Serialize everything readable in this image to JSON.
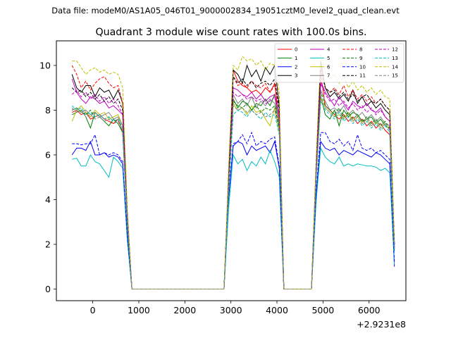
{
  "header": {
    "suptitle": "Data file: modeM0/AS1A05_046T01_9000002834_19051cztM0_level2_quad_clean.evt"
  },
  "chart_data": {
    "type": "line",
    "title": "Quadrant 3 module wise count rates with 100.0s bins.",
    "xlabel": "",
    "ylabel": "",
    "x_offset_label": "+2.9231e8",
    "xlim": [
      -790,
      6800
    ],
    "ylim": [
      -0.52,
      11.1
    ],
    "x_ticks": [
      0,
      1000,
      2000,
      3000,
      4000,
      5000,
      6000
    ],
    "x_tick_labels": [
      "0",
      "1000",
      "2000",
      "3000",
      "4000",
      "5000",
      "6000"
    ],
    "y_ticks": [
      0,
      2,
      4,
      6,
      8,
      10
    ],
    "y_tick_labels": [
      "0",
      "2",
      "4",
      "6",
      "8",
      "10"
    ],
    "grid": false,
    "legend_placement": "top-right",
    "legend_columns": 4,
    "x": [
      -450,
      -350,
      -250,
      -150,
      -50,
      50,
      150,
      250,
      350,
      450,
      550,
      650,
      750,
      850,
      950,
      1050,
      1150,
      1250,
      1350,
      1450,
      1550,
      1650,
      1750,
      1850,
      1950,
      2050,
      2150,
      2250,
      2350,
      2450,
      2550,
      2650,
      2750,
      2850,
      2950,
      3050,
      3150,
      3250,
      3350,
      3450,
      3550,
      3650,
      3750,
      3850,
      3950,
      4050,
      4150,
      4250,
      4350,
      4450,
      4550,
      4650,
      4750,
      4850,
      4950,
      5050,
      5150,
      5250,
      5350,
      5450,
      5550,
      5650,
      5750,
      5850,
      5950,
      6050,
      6150,
      6250,
      6350,
      6450,
      6550
    ],
    "series": [
      {
        "name": "0",
        "color": "#ff0000",
        "dash": "solid",
        "values": [
          7.9,
          8.0,
          7.8,
          7.9,
          7.6,
          7.7,
          7.8,
          7.6,
          7.5,
          7.4,
          7.6,
          7.0,
          3.0,
          0,
          0,
          0,
          0,
          0,
          0,
          0,
          0,
          0,
          0,
          0,
          0,
          0,
          0,
          0,
          0,
          0,
          0,
          0,
          0,
          0,
          4.5,
          9.8,
          9.3,
          9.1,
          9.0,
          8.8,
          8.9,
          8.7,
          9.0,
          8.8,
          9.2,
          7.5,
          0,
          0,
          0,
          0,
          0,
          0,
          0,
          5.0,
          9.6,
          8.2,
          8.0,
          7.8,
          7.6,
          7.8,
          7.5,
          7.7,
          7.4,
          7.6,
          7.3,
          7.5,
          7.2,
          7.4,
          7.1,
          6.9,
          1.8
        ]
      },
      {
        "name": "1",
        "color": "#008000",
        "dash": "solid",
        "values": [
          7.8,
          7.9,
          8.0,
          7.7,
          7.2,
          7.9,
          7.7,
          7.5,
          7.3,
          7.6,
          7.4,
          7.0,
          3.0,
          0,
          0,
          0,
          0,
          0,
          0,
          0,
          0,
          0,
          0,
          0,
          0,
          0,
          0,
          0,
          0,
          0,
          0,
          0,
          0,
          0,
          4.6,
          8.5,
          8.1,
          8.4,
          8.3,
          8.0,
          8.3,
          8.2,
          8.5,
          8.2,
          8.7,
          7.2,
          0,
          0,
          0,
          0,
          0,
          0,
          0,
          5.0,
          8.6,
          7.8,
          7.6,
          8.0,
          7.3,
          8.0,
          7.7,
          7.9,
          7.8,
          7.5,
          7.6,
          7.7,
          7.4,
          7.6,
          7.3,
          7.2,
          1.7
        ]
      },
      {
        "name": "2",
        "color": "#0000ff",
        "dash": "solid",
        "values": [
          6.0,
          6.3,
          6.3,
          6.2,
          6.6,
          6.0,
          6.0,
          6.1,
          5.9,
          6.0,
          5.9,
          5.6,
          2.4,
          0,
          0,
          0,
          0,
          0,
          0,
          0,
          0,
          0,
          0,
          0,
          0,
          0,
          0,
          0,
          0,
          0,
          0,
          0,
          0,
          0,
          4.0,
          6.4,
          6.6,
          6.5,
          6.0,
          6.4,
          6.2,
          6.3,
          6.4,
          6.1,
          6.6,
          5.4,
          0,
          0,
          0,
          0,
          0,
          0,
          0,
          4.2,
          6.6,
          6.3,
          6.2,
          6.3,
          6.0,
          6.2,
          6.1,
          6.0,
          6.2,
          6.1,
          6.0,
          5.9,
          6.1,
          6.0,
          5.8,
          5.6,
          1.0
        ]
      },
      {
        "name": "3",
        "color": "#000000",
        "dash": "solid",
        "values": [
          9.6,
          9.0,
          8.8,
          9.1,
          9.1,
          8.6,
          9.0,
          8.8,
          8.9,
          8.5,
          8.9,
          8.3,
          3.4,
          0,
          0,
          0,
          0,
          0,
          0,
          0,
          0,
          0,
          0,
          0,
          0,
          0,
          0,
          0,
          0,
          0,
          0,
          0,
          0,
          0,
          5.0,
          9.8,
          9.6,
          9.2,
          10.0,
          9.5,
          9.8,
          9.3,
          9.9,
          9.6,
          10.0,
          8.2,
          0,
          0,
          0,
          0,
          0,
          0,
          0,
          5.6,
          10.2,
          9.0,
          8.6,
          8.8,
          8.5,
          8.7,
          8.4,
          8.9,
          8.3,
          8.6,
          8.2,
          8.4,
          8.1,
          8.3,
          8.0,
          7.8,
          2.0
        ]
      },
      {
        "name": "4",
        "color": "#bf00bf",
        "dash": "solid",
        "values": [
          9.4,
          8.8,
          8.5,
          8.3,
          8.6,
          8.5,
          8.3,
          8.4,
          8.1,
          8.2,
          8.0,
          7.8,
          3.2,
          0,
          0,
          0,
          0,
          0,
          0,
          0,
          0,
          0,
          0,
          0,
          0,
          0,
          0,
          0,
          0,
          0,
          0,
          0,
          0,
          0,
          4.8,
          9.0,
          8.9,
          8.7,
          8.6,
          8.8,
          8.5,
          8.7,
          8.4,
          8.6,
          8.7,
          7.8,
          0,
          0,
          0,
          0,
          0,
          0,
          0,
          5.4,
          9.3,
          8.8,
          8.5,
          8.2,
          8.6,
          8.3,
          8.0,
          8.4,
          8.2,
          8.1,
          8.3,
          8.0,
          7.9,
          8.1,
          7.7,
          7.5,
          1.9
        ]
      },
      {
        "name": "5",
        "color": "#00bfbf",
        "dash": "solid",
        "values": [
          5.8,
          5.85,
          5.5,
          5.5,
          6.0,
          5.7,
          5.6,
          5.3,
          5.0,
          5.9,
          5.7,
          5.4,
          2.2,
          0,
          0,
          0,
          0,
          0,
          0,
          0,
          0,
          0,
          0,
          0,
          0,
          0,
          0,
          0,
          0,
          0,
          0,
          0,
          0,
          0,
          3.6,
          6.0,
          5.6,
          5.8,
          5.3,
          5.7,
          5.5,
          5.9,
          5.6,
          6.2,
          5.7,
          5.0,
          0,
          0,
          0,
          0,
          0,
          0,
          0,
          3.9,
          6.3,
          5.9,
          5.7,
          5.6,
          5.9,
          5.5,
          5.6,
          5.5,
          5.6,
          5.55,
          5.5,
          5.5,
          5.45,
          5.3,
          5.4,
          5.2,
          1.1
        ]
      },
      {
        "name": "6",
        "color": "#bfbf00",
        "dash": "solid",
        "values": [
          7.5,
          8.0,
          8.2,
          7.9,
          7.7,
          8.0,
          7.8,
          7.9,
          7.6,
          7.7,
          7.8,
          7.3,
          3.0,
          0,
          0,
          0,
          0,
          0,
          0,
          0,
          0,
          0,
          0,
          0,
          0,
          0,
          0,
          0,
          0,
          0,
          0,
          0,
          0,
          0,
          4.6,
          8.3,
          8.0,
          8.1,
          7.8,
          8.2,
          7.9,
          8.0,
          7.6,
          7.3,
          8.1,
          7.0,
          0,
          0,
          0,
          0,
          0,
          0,
          0,
          5.0,
          8.5,
          8.1,
          7.9,
          7.7,
          7.8,
          7.6,
          7.9,
          7.5,
          7.7,
          7.4,
          7.6,
          7.3,
          7.5,
          7.2,
          7.4,
          7.1,
          1.8
        ]
      },
      {
        "name": "7",
        "color": "#808080",
        "dash": "solid",
        "values": [
          8.0,
          8.1,
          7.9,
          8.0,
          7.8,
          7.9,
          7.7,
          7.8,
          7.9,
          7.6,
          7.7,
          7.3,
          3.0,
          0,
          0,
          0,
          0,
          0,
          0,
          0,
          0,
          0,
          0,
          0,
          0,
          0,
          0,
          0,
          0,
          0,
          0,
          0,
          0,
          0,
          4.7,
          8.7,
          8.3,
          8.5,
          8.2,
          8.6,
          8.1,
          8.4,
          8.2,
          8.5,
          8.3,
          7.4,
          0,
          0,
          0,
          0,
          0,
          0,
          0,
          5.2,
          8.9,
          8.4,
          8.0,
          8.1,
          7.9,
          8.2,
          7.8,
          8.0,
          7.7,
          7.9,
          7.6,
          7.8,
          7.5,
          7.7,
          7.4,
          7.3,
          1.8
        ]
      },
      {
        "name": "8",
        "color": "#ff0000",
        "dash": "dashed",
        "values": [
          10.0,
          9.6,
          9.0,
          9.3,
          8.9,
          9.2,
          9.4,
          9.5,
          9.2,
          9.0,
          9.1,
          8.3,
          3.4,
          0,
          0,
          0,
          0,
          0,
          0,
          0,
          0,
          0,
          0,
          0,
          0,
          0,
          0,
          0,
          0,
          0,
          0,
          0,
          0,
          0,
          5.0,
          9.5,
          9.1,
          9.2,
          9.0,
          9.3,
          9.1,
          9.0,
          9.2,
          8.8,
          9.1,
          8.0,
          0,
          0,
          0,
          0,
          0,
          0,
          0,
          5.5,
          10.0,
          9.0,
          8.8,
          9.0,
          8.7,
          9.1,
          8.6,
          8.9,
          8.5,
          8.7,
          8.4,
          8.6,
          8.3,
          8.5,
          8.2,
          8.0,
          2.0
        ]
      },
      {
        "name": "9",
        "color": "#008000",
        "dash": "dashed",
        "values": [
          8.0,
          8.1,
          7.9,
          7.8,
          8.0,
          7.7,
          7.8,
          7.6,
          7.7,
          7.5,
          7.6,
          7.2,
          3.0,
          0,
          0,
          0,
          0,
          0,
          0,
          0,
          0,
          0,
          0,
          0,
          0,
          0,
          0,
          0,
          0,
          0,
          0,
          0,
          0,
          0,
          4.6,
          8.4,
          8.2,
          8.1,
          8.3,
          8.0,
          8.2,
          7.9,
          8.1,
          8.0,
          8.2,
          7.2,
          0,
          0,
          0,
          0,
          0,
          0,
          0,
          5.1,
          8.8,
          8.2,
          8.0,
          7.8,
          8.1,
          7.7,
          7.9,
          7.6,
          7.8,
          7.5,
          7.7,
          7.4,
          7.6,
          7.3,
          7.5,
          7.2,
          1.8
        ]
      },
      {
        "name": "10",
        "color": "#0000ff",
        "dash": "dashed",
        "values": [
          6.5,
          6.5,
          6.45,
          6.5,
          6.5,
          6.9,
          6.0,
          6.1,
          6.0,
          6.1,
          6.0,
          5.7,
          2.4,
          0,
          0,
          0,
          0,
          0,
          0,
          0,
          0,
          0,
          0,
          0,
          0,
          0,
          0,
          0,
          0,
          0,
          0,
          0,
          0,
          0,
          4.1,
          6.5,
          6.6,
          6.9,
          6.5,
          7.0,
          6.4,
          6.6,
          6.5,
          6.7,
          6.8,
          5.5,
          0,
          0,
          0,
          0,
          0,
          0,
          0,
          4.3,
          7.0,
          7.0,
          6.6,
          6.5,
          6.7,
          6.4,
          6.6,
          6.2,
          6.9,
          6.3,
          6.2,
          6.3,
          6.1,
          6.2,
          6.0,
          5.8,
          1.2
        ]
      },
      {
        "name": "11",
        "color": "#000000",
        "dash": "dashed",
        "values": [
          9.0,
          8.8,
          8.9,
          8.6,
          8.8,
          8.5,
          8.7,
          8.4,
          8.6,
          8.3,
          8.5,
          8.0,
          3.3,
          0,
          0,
          0,
          0,
          0,
          0,
          0,
          0,
          0,
          0,
          0,
          0,
          0,
          0,
          0,
          0,
          0,
          0,
          0,
          0,
          0,
          5.0,
          9.5,
          9.2,
          9.4,
          9.1,
          9.3,
          9.0,
          9.2,
          9.3,
          9.1,
          9.4,
          8.0,
          0,
          0,
          0,
          0,
          0,
          0,
          0,
          5.5,
          9.8,
          9.0,
          8.8,
          8.9,
          8.6,
          8.8,
          8.5,
          8.7,
          8.4,
          8.6,
          8.7,
          8.4,
          8.3,
          8.5,
          8.2,
          8.0,
          2.0
        ]
      },
      {
        "name": "12",
        "color": "#bf00bf",
        "dash": "dashed",
        "values": [
          8.7,
          8.9,
          8.6,
          8.8,
          8.5,
          8.7,
          8.4,
          8.6,
          8.3,
          8.5,
          8.2,
          7.8,
          3.2,
          0,
          0,
          0,
          0,
          0,
          0,
          0,
          0,
          0,
          0,
          0,
          0,
          0,
          0,
          0,
          0,
          0,
          0,
          0,
          0,
          0,
          4.8,
          8.8,
          8.6,
          8.7,
          8.5,
          8.6,
          8.4,
          8.5,
          8.3,
          8.4,
          8.6,
          7.7,
          0,
          0,
          0,
          0,
          0,
          0,
          0,
          5.3,
          9.2,
          8.7,
          8.4,
          8.5,
          8.2,
          8.4,
          8.1,
          8.3,
          8.0,
          8.2,
          7.9,
          8.1,
          7.8,
          8.0,
          7.7,
          7.5,
          1.9
        ]
      },
      {
        "name": "13",
        "color": "#00bfbf",
        "dash": "dashed",
        "values": [
          8.2,
          8.0,
          8.1,
          7.8,
          7.9,
          7.7,
          7.8,
          7.6,
          7.7,
          7.5,
          7.6,
          7.2,
          3.0,
          0,
          0,
          0,
          0,
          0,
          0,
          0,
          0,
          0,
          0,
          0,
          0,
          0,
          0,
          0,
          0,
          0,
          0,
          0,
          0,
          0,
          4.2,
          7.8,
          8.0,
          7.9,
          7.7,
          8.0,
          7.8,
          7.6,
          7.9,
          7.7,
          7.8,
          6.9,
          0,
          0,
          0,
          0,
          0,
          0,
          0,
          4.9,
          8.4,
          8.0,
          7.8,
          7.6,
          7.9,
          7.5,
          7.7,
          7.4,
          7.6,
          7.3,
          7.5,
          7.2,
          7.4,
          7.1,
          7.3,
          7.0,
          1.7
        ]
      },
      {
        "name": "14",
        "color": "#bfbf00",
        "dash": "dashed",
        "values": [
          10.2,
          10.2,
          9.9,
          9.6,
          9.8,
          9.9,
          9.7,
          9.8,
          9.6,
          9.7,
          9.6,
          9.0,
          3.7,
          0,
          0,
          0,
          0,
          0,
          0,
          0,
          0,
          0,
          0,
          0,
          0,
          0,
          0,
          0,
          0,
          0,
          0,
          0,
          0,
          0,
          5.5,
          10.0,
          9.8,
          10.4,
          10.2,
          10.3,
          10.0,
          10.2,
          9.8,
          10.1,
          10.0,
          8.8,
          0,
          0,
          0,
          0,
          0,
          0,
          0,
          5.8,
          10.5,
          9.7,
          9.4,
          9.6,
          9.2,
          9.5,
          9.0,
          9.3,
          8.9,
          9.1,
          8.8,
          9.0,
          8.7,
          8.9,
          8.6,
          8.5,
          2.1
        ]
      },
      {
        "name": "15",
        "color": "#808080",
        "dash": "dashed",
        "values": [
          8.1,
          7.9,
          8.0,
          7.7,
          7.8,
          7.6,
          7.7,
          7.5,
          7.6,
          7.4,
          7.5,
          7.1,
          2.9,
          0,
          0,
          0,
          0,
          0,
          0,
          0,
          0,
          0,
          0,
          0,
          0,
          0,
          0,
          0,
          0,
          0,
          0,
          0,
          0,
          0,
          4.5,
          8.2,
          8.0,
          8.1,
          7.9,
          8.0,
          7.8,
          7.9,
          7.7,
          7.8,
          8.0,
          7.1,
          0,
          0,
          0,
          0,
          0,
          0,
          0,
          5.0,
          8.6,
          8.1,
          7.9,
          7.7,
          8.0,
          7.6,
          7.8,
          7.5,
          7.7,
          7.4,
          7.6,
          7.3,
          7.5,
          7.2,
          7.4,
          7.1,
          1.8
        ]
      }
    ]
  }
}
